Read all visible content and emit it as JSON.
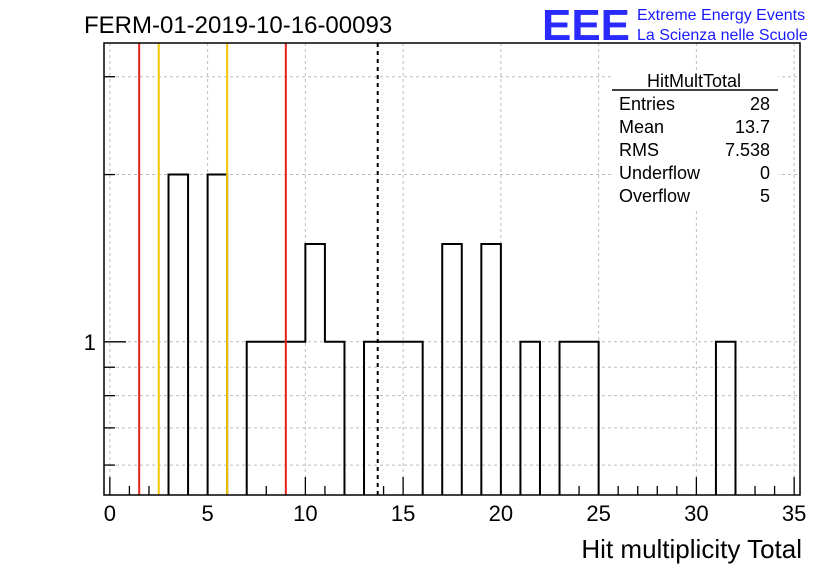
{
  "header": {
    "run_id": "FERM-01-2019-10-16-00093",
    "logo_text": "EEE",
    "logo_line1": "Extreme Energy Events",
    "logo_line2": "La Scienza nelle Scuole"
  },
  "stats": {
    "title": "HitMultTotal",
    "rows": [
      {
        "label": "Entries",
        "value": "28"
      },
      {
        "label": "Mean",
        "value": "13.7"
      },
      {
        "label": "RMS",
        "value": "7.538"
      },
      {
        "label": "Underflow",
        "value": "0"
      },
      {
        "label": "Overflow",
        "value": "5"
      }
    ]
  },
  "colors": {
    "red_line": "#e8201c",
    "yellow_line": "#f2c500",
    "histogram": "#000000",
    "grid": "#bdbdbd",
    "logo": "#2a2aff"
  },
  "chart_data": {
    "type": "bar",
    "style": "step-histogram",
    "xlabel": "Hit multiplicity Total",
    "xlim": [
      -0.3,
      35.3
    ],
    "ylim": [
      0.53,
      3.45
    ],
    "yscale": "log",
    "grid": true,
    "bin_width": 1,
    "bins": [
      {
        "x": 3.5,
        "y": 2
      },
      {
        "x": 5.5,
        "y": 2
      },
      {
        "x": 7.5,
        "y": 1
      },
      {
        "x": 8.5,
        "y": 1
      },
      {
        "x": 9.5,
        "y": 1
      },
      {
        "x": 10.5,
        "y": 1.5
      },
      {
        "x": 11.5,
        "y": 1
      },
      {
        "x": 13.5,
        "y": 1
      },
      {
        "x": 14.5,
        "y": 1
      },
      {
        "x": 15.5,
        "y": 1
      },
      {
        "x": 17.5,
        "y": 1.5
      },
      {
        "x": 19.5,
        "y": 1.5
      },
      {
        "x": 21.5,
        "y": 1
      },
      {
        "x": 23.5,
        "y": 1
      },
      {
        "x": 24.5,
        "y": 1
      },
      {
        "x": 31.5,
        "y": 1
      }
    ],
    "x_ticks": [
      "0",
      "5",
      "10",
      "15",
      "20",
      "25",
      "30",
      "35"
    ],
    "x_tick_values": [
      0,
      5,
      10,
      15,
      20,
      25,
      30,
      35
    ],
    "y_tick_labels": [
      {
        "value": 1,
        "label": "1"
      }
    ],
    "vertical_lines": [
      {
        "x": 1.5,
        "color": "red"
      },
      {
        "x": 2.5,
        "color": "yellow"
      },
      {
        "x": 6.0,
        "color": "yellow"
      },
      {
        "x": 9.0,
        "color": "red"
      },
      {
        "x": 13.7,
        "color": "black-dashed"
      }
    ]
  }
}
